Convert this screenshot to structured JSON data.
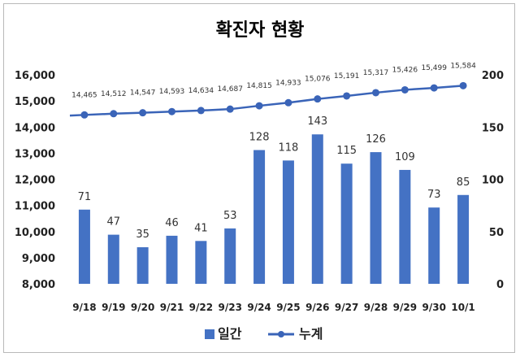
{
  "chart_data": {
    "type": "bar",
    "title": "확진자 현황",
    "categories": [
      "9/18",
      "9/19",
      "9/20",
      "9/21",
      "9/22",
      "9/23",
      "9/24",
      "9/25",
      "9/26",
      "9/27",
      "9/28",
      "9/29",
      "9/30",
      "10/1"
    ],
    "series": [
      {
        "name": "일간",
        "type": "bar",
        "axis": "right",
        "color": "#4472c4",
        "values": [
          71,
          47,
          35,
          46,
          41,
          53,
          128,
          118,
          143,
          115,
          126,
          109,
          73,
          85
        ]
      },
      {
        "name": "누계",
        "type": "line",
        "axis": "left",
        "color": "#3a64b8",
        "values": [
          14465,
          14512,
          14547,
          14593,
          14634,
          14687,
          14815,
          14933,
          15076,
          15191,
          15317,
          15426,
          15499,
          15584
        ],
        "labels": [
          "14,465",
          "14,512",
          "14,547",
          "14,593",
          "14,634",
          "14,687",
          "14,815",
          "14,933",
          "15,076",
          "15,191",
          "15,317",
          "15,426",
          "15,499",
          "15,584"
        ]
      }
    ],
    "y_left": {
      "min": 8000,
      "max": 16000,
      "ticks": [
        "8,000",
        "9,000",
        "10,000",
        "11,000",
        "12,000",
        "13,000",
        "14,000",
        "15,000",
        "16,000"
      ]
    },
    "y_right": {
      "min": 0,
      "max": 200,
      "ticks": [
        "0",
        "50",
        "100",
        "150",
        "200"
      ]
    },
    "grid": false,
    "legend_position": "bottom"
  }
}
